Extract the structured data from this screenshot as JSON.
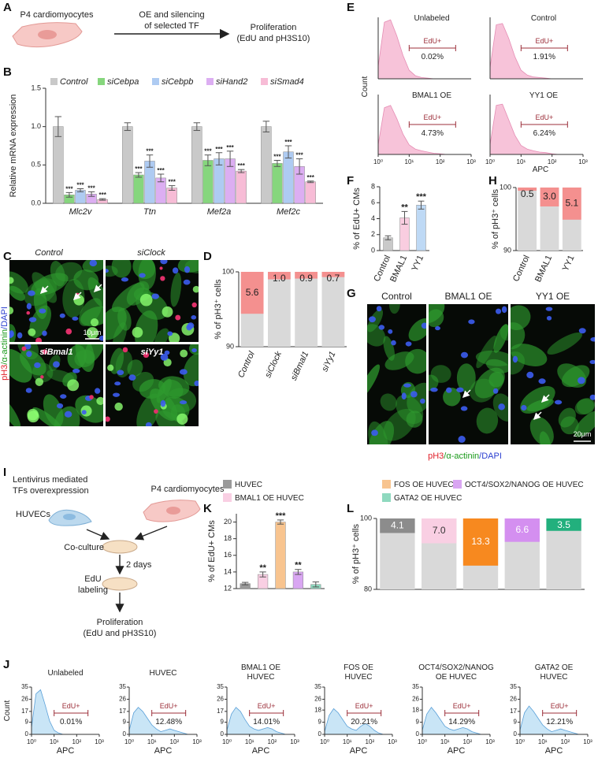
{
  "panel_labels": [
    "A",
    "B",
    "C",
    "D",
    "E",
    "F",
    "G",
    "H",
    "I",
    "J",
    "K",
    "L"
  ],
  "diagram_a": {
    "cell_label": "P4 cardiomyocytes",
    "arrow_label": [
      "OE and silencing",
      "of selected TF"
    ],
    "result": [
      "Proliferation",
      "(EdU and pH3S10)"
    ]
  },
  "diagram_i": {
    "lentivirus": [
      "Lentivirus mediated",
      "TFs overexpression"
    ],
    "huvec": "HUVECs",
    "cardio": "P4 cardiomyocytes",
    "coculture": "Co-culture",
    "days": "2 days",
    "edu": [
      "EdU",
      "labeling"
    ],
    "result": [
      "Proliferation",
      "(EdU and pH3S10)"
    ]
  },
  "images_c": {
    "titles": [
      "Control",
      "siClock",
      "siBmal1",
      "siYy1"
    ],
    "stain": [
      "pH3",
      "/α-actinin",
      "/DAPI"
    ],
    "scale": "10μm"
  },
  "images_g": {
    "titles": [
      "Control",
      "BMAL1 OE",
      "YY1 OE"
    ],
    "stain": [
      "pH3",
      "/α-actinin",
      "/DAPI"
    ],
    "scale": "20μm"
  },
  "chart_data": [
    {
      "type": "bar",
      "ylabel": "Relative mRNA expression",
      "categories": [
        "Mlc2v",
        "Ttn",
        "Mef2a",
        "Mef2c"
      ],
      "ylim": [
        0,
        1.5
      ],
      "yticks": [
        {
          "value": 0,
          "label": "0.0"
        },
        0.5,
        {
          "value": 1,
          "label": "1.0"
        },
        1.5
      ],
      "series": [
        {
          "name": "Control",
          "color": "#c9c9c9",
          "values": [
            1,
            1,
            1,
            1
          ],
          "errors": [
            0.13,
            0.05,
            0.05,
            0.07
          ]
        },
        {
          "name": "siCebpa",
          "color": "#86d67d",
          "values": [
            0.11,
            0.37,
            0.56,
            0.52
          ],
          "errors": [
            0.03,
            0.03,
            0.07,
            0.04
          ],
          "significance": [
            "***",
            "***",
            "***",
            "***"
          ]
        },
        {
          "name": "siCebpb",
          "color": "#aecbf2",
          "values": [
            0.17,
            0.55,
            0.58,
            0.67
          ],
          "errors": [
            0.02,
            0.08,
            0.08,
            0.08
          ],
          "significance": [
            "***",
            "***",
            "***",
            "***"
          ]
        },
        {
          "name": "siHand2",
          "color": "#dcaef2",
          "values": [
            0.12,
            0.33,
            0.58,
            0.48
          ],
          "errors": [
            0.03,
            0.05,
            0.1,
            0.1
          ],
          "significance": [
            "***",
            "***",
            "***",
            "***"
          ]
        },
        {
          "name": "siSmad4",
          "color": "#f7bcd6",
          "values": [
            0.05,
            0.2,
            0.42,
            0.28
          ],
          "errors": [
            0.01,
            0.03,
            0.02,
            0.01
          ],
          "significance": [
            "***",
            "***",
            "***",
            "***"
          ]
        }
      ]
    },
    {
      "type": "stack",
      "ylabel": "% of pH3⁺ cells",
      "categories": [
        "Control",
        "siClock",
        "siBmal1",
        "siYy1"
      ],
      "values": [
        5.6,
        1.0,
        0.9,
        0.7
      ],
      "value_labels": [
        "5.6",
        "1.0",
        "0.9",
        "0.7"
      ],
      "ylim": [
        90,
        100
      ],
      "yticks": [
        90,
        100
      ],
      "color": "#f4908f",
      "base_color": "#d9d9d9",
      "label_color": "#222"
    },
    {
      "type": "flow",
      "ylabel": "Count",
      "xlabel": "APC",
      "gate_label": "EdU+",
      "color": "#f6b8d2",
      "line": "#e58db4",
      "x": [
        0,
        0.2,
        0.4,
        0.6,
        0.8,
        1,
        1.2,
        1.4,
        1.6,
        1.8,
        2,
        2.2,
        2.4,
        2.6,
        2.8,
        3
      ],
      "xlim": [
        0,
        3
      ],
      "xticks": [
        {
          "value": 0,
          "label": "10⁰"
        },
        {
          "value": 1,
          "label": "10¹"
        },
        {
          "value": 2,
          "label": "10²"
        },
        {
          "value": 3,
          "label": "10³"
        }
      ],
      "ylim": [
        0,
        100
      ],
      "gate_x": [
        1,
        2.5
      ],
      "panels": [
        {
          "title": [
            "Unlabeled"
          ],
          "values": [
            20,
            92,
            96,
            70,
            38,
            14,
            5,
            2,
            1,
            0,
            0,
            0,
            0,
            0,
            0,
            0
          ],
          "gate_text": "0.02%"
        },
        {
          "title": [
            "Control"
          ],
          "values": [
            18,
            88,
            90,
            66,
            36,
            14,
            6,
            3,
            2,
            1,
            0,
            0,
            0,
            0,
            0,
            0
          ],
          "gate_text": "1.91%"
        },
        {
          "title": [
            "BMAL1 OE"
          ],
          "values": [
            16,
            78,
            82,
            60,
            34,
            16,
            9,
            6,
            4,
            2,
            1,
            0,
            0,
            0,
            0,
            0
          ],
          "gate_text": "4.73%"
        },
        {
          "title": [
            "YY1 OE"
          ],
          "values": [
            16,
            82,
            84,
            58,
            32,
            15,
            9,
            6,
            4,
            3,
            1,
            0,
            0,
            0,
            0,
            0
          ],
          "gate_text": "6.24%"
        }
      ]
    },
    {
      "type": "bar",
      "ylabel": "% of EdU+ CMs",
      "categories": [
        "Control",
        "BMAL1",
        "YY1"
      ],
      "colors": [
        "#c9c9c9",
        "#f9cde0",
        "#bed9f5"
      ],
      "values": [
        1.6,
        4.1,
        5.7
      ],
      "errors": [
        0.25,
        0.8,
        0.5
      ],
      "significance": [
        null,
        "**",
        "***"
      ],
      "ylim": [
        0,
        8
      ],
      "yticks": [
        0,
        2,
        4,
        6,
        8
      ]
    },
    {
      "type": "stack",
      "ylabel": "% of pH3⁺ cells",
      "categories": [
        "Control",
        "BMAL1",
        "YY1"
      ],
      "values": [
        0.5,
        3.0,
        5.1
      ],
      "value_labels": [
        "0.5",
        "3.0",
        "5.1"
      ],
      "ylim": [
        90,
        100
      ],
      "yticks": [
        90,
        100
      ],
      "color": "#f4908f",
      "base_color": "#d9d9d9",
      "label_color": "#222"
    },
    {
      "type": "bar",
      "ylabel": "% of EdU+ CMs",
      "categories": [
        "HUVEC",
        "BMAL1 OE HUVEC",
        "FOS OE HUVEC",
        "OCT4/SOX2/NANOG OE HUVEC",
        "GATA2 OE HUVEC"
      ],
      "colors": [
        "#9a9a9a",
        "#f9cfe3",
        "#f8c48f",
        "#d9a6f2",
        "#8fd9bf"
      ],
      "values": [
        12.6,
        13.7,
        20,
        14.0,
        12.5
      ],
      "errors": [
        0.15,
        0.3,
        0.25,
        0.3,
        0.3
      ],
      "significance": [
        null,
        "**",
        "***",
        "**",
        null
      ],
      "ylim": [
        12,
        21
      ],
      "yticks": [
        12,
        14,
        16,
        18,
        20
      ]
    },
    {
      "type": "stack",
      "ylabel": "% of pH3⁺ cells",
      "values": [
        4.1,
        7.0,
        13.3,
        6.6,
        3.5
      ],
      "value_labels": [
        "4.1",
        "7.0",
        "13.3",
        "6.6",
        "3.5"
      ],
      "ylim": [
        80,
        100
      ],
      "yticks": [
        80,
        100
      ],
      "colors": [
        "#8c8c8c",
        "#f9cfe3",
        "#f7891f",
        "#d48ff0",
        "#22b07d"
      ],
      "base_color": "#d9d9d9",
      "label_colors": [
        "#fff",
        "#333",
        "#fff",
        "#fff",
        "#fff"
      ]
    },
    {
      "type": "flow",
      "ylabel": "Count",
      "xlabel": "APC",
      "gate_label": "EdU+",
      "color": "#bfe0f5",
      "line": "#5aa0d8",
      "x": [
        0,
        0.2,
        0.4,
        0.6,
        0.8,
        1,
        1.2,
        1.4,
        1.6,
        1.8,
        2,
        2.2,
        2.4,
        2.6,
        2.8,
        3
      ],
      "xlim": [
        0,
        3
      ],
      "xticks": [
        {
          "value": 0,
          "label": "10⁰"
        },
        {
          "value": 1,
          "label": "10¹"
        },
        {
          "value": 2,
          "label": "10²"
        },
        {
          "value": 3,
          "label": "10³"
        }
      ],
      "gate_x": [
        1,
        2.5
      ],
      "panels": [
        {
          "title": [
            "Unlabeled"
          ],
          "values": [
            5,
            30,
            33,
            22,
            10,
            3,
            1,
            0,
            0,
            0,
            0,
            0,
            0,
            0,
            0,
            0
          ],
          "ylim": [
            0,
            35
          ],
          "yticks": [
            0,
            9,
            17,
            26,
            35
          ],
          "gate_text": "0.01%"
        },
        {
          "title": [
            "HUVEC"
          ],
          "values": [
            3,
            16,
            20,
            17,
            12,
            7,
            4,
            2,
            3,
            4,
            3,
            2,
            1,
            0,
            0,
            0
          ],
          "ylim": [
            0,
            35
          ],
          "yticks": [
            0,
            9,
            17,
            26,
            35
          ],
          "gate_text": "12.48%"
        },
        {
          "title": [
            "BMAL1 OE",
            "HUVEC"
          ],
          "values": [
            3,
            15,
            20,
            17,
            11,
            6,
            4,
            3,
            4,
            5,
            4,
            2,
            1,
            0,
            0,
            0
          ],
          "ylim": [
            0,
            35
          ],
          "yticks": [
            0,
            9,
            17,
            26,
            35
          ],
          "gate_text": "14.01%"
        },
        {
          "title": [
            "FOS OE",
            "HUVEC"
          ],
          "values": [
            2,
            14,
            19,
            16,
            11,
            6,
            4,
            3,
            6,
            8,
            6,
            3,
            1,
            0,
            0,
            0
          ],
          "ylim": [
            0,
            35
          ],
          "yticks": [
            0,
            9,
            18,
            26,
            35
          ],
          "gate_text": "20.21%"
        },
        {
          "title": [
            "OCT4/SOX2/NANOG",
            "OE HUVEC"
          ],
          "values": [
            3,
            15,
            20,
            16,
            11,
            6,
            4,
            3,
            4,
            5,
            4,
            2,
            1,
            0,
            0,
            0
          ],
          "ylim": [
            0,
            35
          ],
          "yticks": [
            0,
            9,
            18,
            26,
            35
          ],
          "gate_text": "14.29%"
        },
        {
          "title": [
            "GATA2 OE",
            "HUVEC"
          ],
          "values": [
            3,
            16,
            21,
            17,
            12,
            7,
            4,
            2,
            3,
            4,
            3,
            2,
            1,
            0,
            0,
            0
          ],
          "ylim": [
            0,
            35
          ],
          "yticks": [
            0,
            9,
            17,
            26,
            35
          ],
          "gate_text": "12.21%"
        }
      ]
    }
  ]
}
